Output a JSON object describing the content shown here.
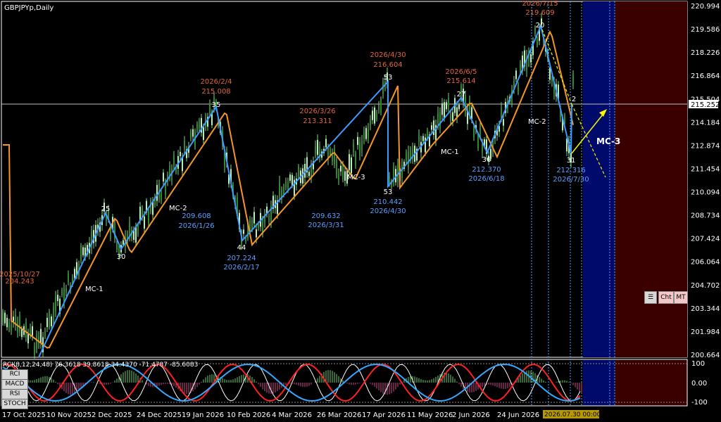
{
  "title": "GBPJPYp,Daily",
  "price_now": "215.252",
  "price_axis": [
    "220.994",
    "219.586",
    "218.226",
    "216.864",
    "215.504",
    "214.184",
    "212.874",
    "211.454",
    "210.094",
    "208.734",
    "207.424",
    "206.064",
    "204.702",
    "203.344",
    "201.984",
    "200.664"
  ],
  "time_axis": [
    "17 Oct 2025",
    "10 Nov 2025",
    "2 Dec 2025",
    "24 Dec 2025",
    "19 Jan 2026",
    "10 Feb 2026",
    "4 Mar 2026",
    "26 Mar 2026",
    "17 Apr 2026",
    "11 May 2026",
    "2 Jun 2026",
    "24 Jun 2026"
  ],
  "time_cursor": "2026.07.30 00:00",
  "sub_axis": [
    "100",
    "0.00",
    "-100"
  ],
  "indicator_label": "RCI(8,12,24,48) 76.3618 39.8618 34.4370 -71.4787 -85.6083",
  "buttons": {
    "chart": "Cht",
    "mt": "MT"
  },
  "indicator_buttons": [
    "RCI",
    "MACD",
    "RSI",
    "STOCH"
  ],
  "pivots": [
    {
      "num": "25",
      "price": "",
      "date": ""
    },
    {
      "num": "30",
      "price": "",
      "date": ""
    },
    {
      "num": "35",
      "price": "215.008",
      "date": "2026/2/4"
    },
    {
      "num": "44",
      "price": "207.224",
      "date": "2026/2/17"
    },
    {
      "num": "53",
      "price": "216.604",
      "date": "2026/4/30"
    },
    {
      "num": "53",
      "price": "210.442",
      "date": "2026/4/30"
    },
    {
      "num": "27",
      "price": "215.614",
      "date": "2026/6/5"
    },
    {
      "num": "36",
      "price": "212.370",
      "date": "2026/6/18"
    },
    {
      "num": "20",
      "price": "219.609",
      "date": "2026/7/15"
    },
    {
      "num": "31",
      "price": "212.316",
      "date": "2026/7/30"
    }
  ],
  "extra_labels": {
    "left_price": "204.243",
    "left_date": "2025/10/27",
    "low_jan_price": "209.608",
    "low_jan_date": "2026/1/26",
    "mar_high_price": "213.311",
    "mar_high_date": "2026/3/26",
    "mar_low_price": "209.632",
    "mar_low_date": "2026/3/31",
    "now_mark": "2"
  },
  "wave_labels": [
    "MC-1",
    "MC-2",
    "MC-3",
    "MC-1",
    "MC-2",
    "MC-3"
  ]
}
